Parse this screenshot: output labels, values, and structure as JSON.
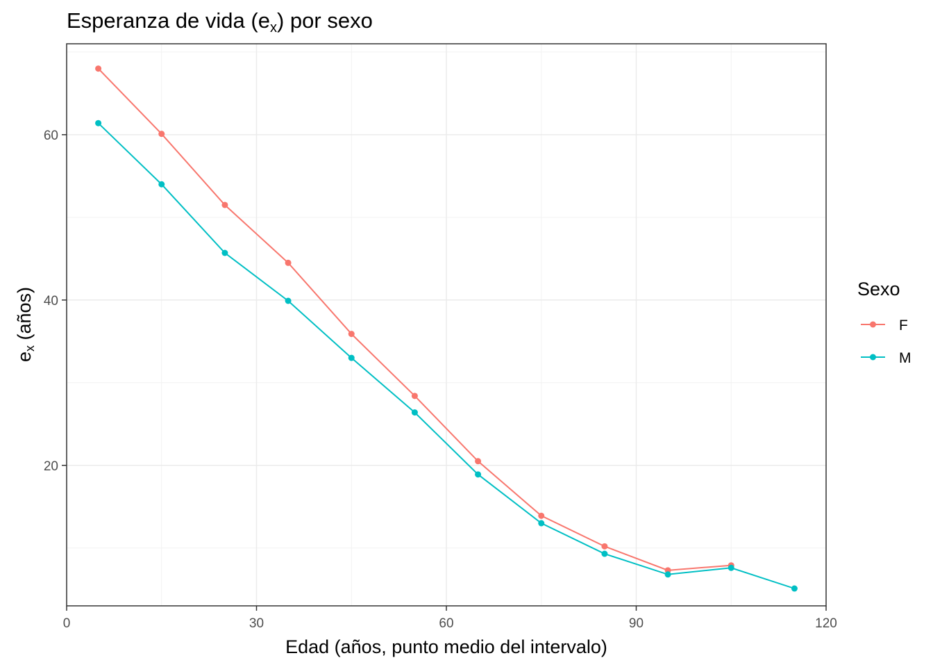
{
  "chart_data": {
    "type": "line",
    "title": {
      "main": "Esperanza de vida (e",
      "sub": "x",
      "tail": ") por sexo"
    },
    "xlabel": "Edad (años, punto medio del intervalo)",
    "ylabel": {
      "main": "e",
      "sub": "x",
      "tail": " (años)"
    },
    "xlim": [
      0,
      120
    ],
    "ylim": [
      3,
      71
    ],
    "x_ticks": [
      0,
      30,
      60,
      90,
      120
    ],
    "x_tick_labels": [
      "0",
      "30",
      "60",
      "90",
      "120"
    ],
    "y_ticks": [
      20,
      40,
      60
    ],
    "y_tick_labels": [
      "20",
      "40",
      "60"
    ],
    "grid": true,
    "legend": {
      "title": "Sexo",
      "position": "right"
    },
    "series": [
      {
        "name": "F",
        "color": "#F8766D",
        "x": [
          5,
          15,
          25,
          35,
          45,
          55,
          65,
          75,
          85,
          95,
          105
        ],
        "y": [
          68.0,
          60.1,
          51.5,
          44.5,
          35.9,
          28.4,
          20.5,
          13.9,
          10.2,
          7.3,
          7.9
        ]
      },
      {
        "name": "M",
        "color": "#00BFC4",
        "x": [
          5,
          15,
          25,
          35,
          45,
          55,
          65,
          75,
          85,
          95,
          105,
          115
        ],
        "y": [
          61.4,
          54.0,
          45.7,
          39.9,
          33.0,
          26.4,
          18.9,
          13.0,
          9.3,
          6.8,
          7.6,
          5.1
        ]
      }
    ]
  }
}
